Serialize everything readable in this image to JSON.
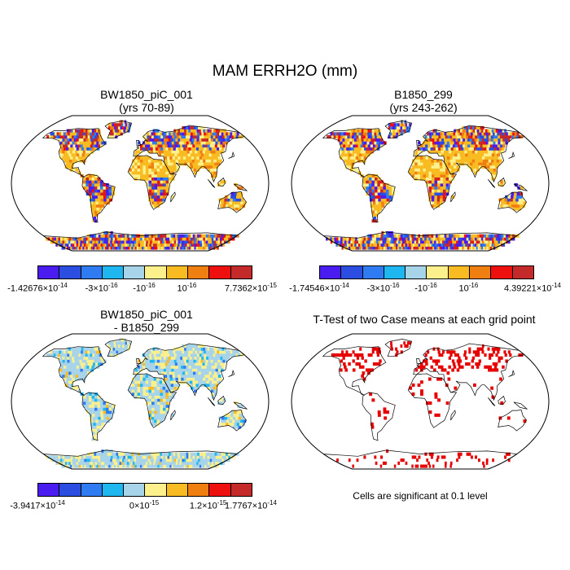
{
  "title": "MAM ERRH2O (mm)",
  "colors": {
    "palette": [
      "#4b1cf0",
      "#2b4de0",
      "#2f7cf2",
      "#1fb7f0",
      "#a8d4ea",
      "#fbf08c",
      "#f8bc22",
      "#f07f12",
      "#ee0f0f",
      "#c52a2a"
    ],
    "land_case": "#f6bb35",
    "land_diff": "#bfe0da",
    "sig_cells": "#e60000"
  },
  "panels": [
    {
      "title_line1": "BW1850_piC_001",
      "title_line2": "(yrs 70-89)",
      "colorbar": {
        "labels": [
          {
            "mant": "-1.42676",
            "exp": "-14"
          },
          {
            "mant": "-3",
            "exp": "-16"
          },
          {
            "mant": "-10",
            "exp": "-16",
            "bare": true
          },
          {
            "mant": "10",
            "exp": "-16",
            "bare": true
          },
          {
            "mant": "7.7362",
            "exp": "-15"
          }
        ]
      }
    },
    {
      "title_line1": "B1850_299",
      "title_line2": "(yrs 243-262)",
      "colorbar": {
        "labels": [
          {
            "mant": "-1.74546",
            "exp": "-14"
          },
          {
            "mant": "-3",
            "exp": "-16"
          },
          {
            "mant": "-10",
            "exp": "-16",
            "bare": true
          },
          {
            "mant": "10",
            "exp": "-16",
            "bare": true
          },
          {
            "mant": "4.39221",
            "exp": "-14"
          }
        ]
      }
    },
    {
      "title_line1": "BW1850_piC_001",
      "title_line2": "- B1850_299",
      "colorbar": {
        "labels": [
          {
            "mant": "-3.9417",
            "exp": "-14"
          },
          {
            "mant": "0",
            "exp": "-15"
          },
          {
            "mant": "1.2",
            "exp": "-15"
          },
          {
            "mant": "1.7767",
            "exp": "-14"
          }
        ]
      }
    },
    {
      "title_line1": "T-Test of two Case means at each grid point",
      "note": "Cells are significant at 0.1 level"
    }
  ]
}
